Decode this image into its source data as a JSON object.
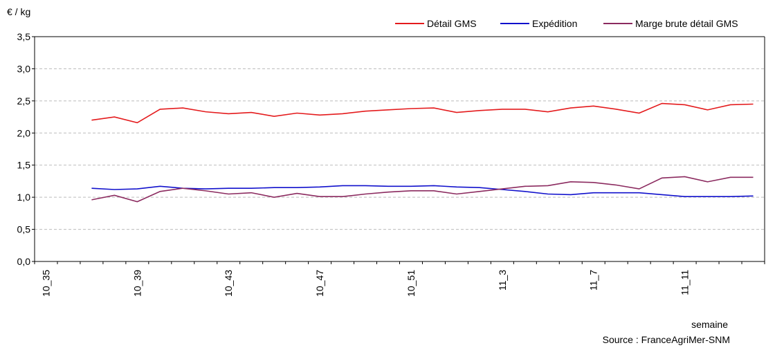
{
  "chart_data": {
    "type": "line",
    "y_label": "€ / kg",
    "x_label": "semaine",
    "source": "Source : FranceAgriMer-SNM",
    "categories": [
      "10_35",
      null,
      null,
      null,
      "10_39",
      null,
      null,
      null,
      "10_43",
      null,
      null,
      null,
      "10_47",
      null,
      null,
      null,
      "10_51",
      null,
      null,
      null,
      "11_3",
      null,
      null,
      null,
      "11_7",
      null,
      null,
      null,
      "11_11",
      null,
      null,
      null
    ],
    "series": [
      {
        "name": "Détail GMS",
        "color": "#e41a1c",
        "values": [
          null,
          null,
          2.2,
          2.25,
          2.16,
          2.37,
          2.39,
          2.33,
          2.3,
          2.32,
          2.26,
          2.31,
          2.28,
          2.3,
          2.34,
          2.36,
          2.38,
          2.39,
          2.32,
          2.35,
          2.37,
          2.37,
          2.33,
          2.39,
          2.42,
          2.37,
          2.31,
          2.46,
          2.44,
          2.36,
          2.44,
          2.45
        ]
      },
      {
        "name": "Expédition",
        "color": "#1010cc",
        "values": [
          null,
          null,
          1.14,
          1.12,
          1.13,
          1.17,
          1.14,
          1.13,
          1.14,
          1.14,
          1.15,
          1.15,
          1.16,
          1.18,
          1.18,
          1.17,
          1.17,
          1.18,
          1.16,
          1.15,
          1.12,
          1.09,
          1.05,
          1.04,
          1.07,
          1.07,
          1.07,
          1.04,
          1.01,
          1.01,
          1.01,
          1.02
        ]
      },
      {
        "name": "Marge brute détail GMS",
        "color": "#8b2a5f",
        "values": [
          null,
          null,
          0.96,
          1.03,
          0.93,
          1.09,
          1.14,
          1.1,
          1.05,
          1.07,
          1.0,
          1.06,
          1.01,
          1.01,
          1.05,
          1.08,
          1.1,
          1.1,
          1.05,
          1.09,
          1.13,
          1.17,
          1.18,
          1.24,
          1.23,
          1.19,
          1.13,
          1.3,
          1.32,
          1.24,
          1.31,
          1.31
        ]
      }
    ],
    "ylim": [
      0,
      3.5
    ],
    "yticks": [
      {
        "value": 0,
        "label": "0,0"
      },
      {
        "value": 0.5,
        "label": "0,5"
      },
      {
        "value": 1,
        "label": "1,0"
      },
      {
        "value": 1.5,
        "label": "1,5"
      },
      {
        "value": 2,
        "label": "2,0"
      },
      {
        "value": 2.5,
        "label": "2,5"
      },
      {
        "value": 3,
        "label": "3,0"
      },
      {
        "value": 3.5,
        "label": "3,5"
      }
    ],
    "grid": true,
    "legend": "top-right"
  }
}
